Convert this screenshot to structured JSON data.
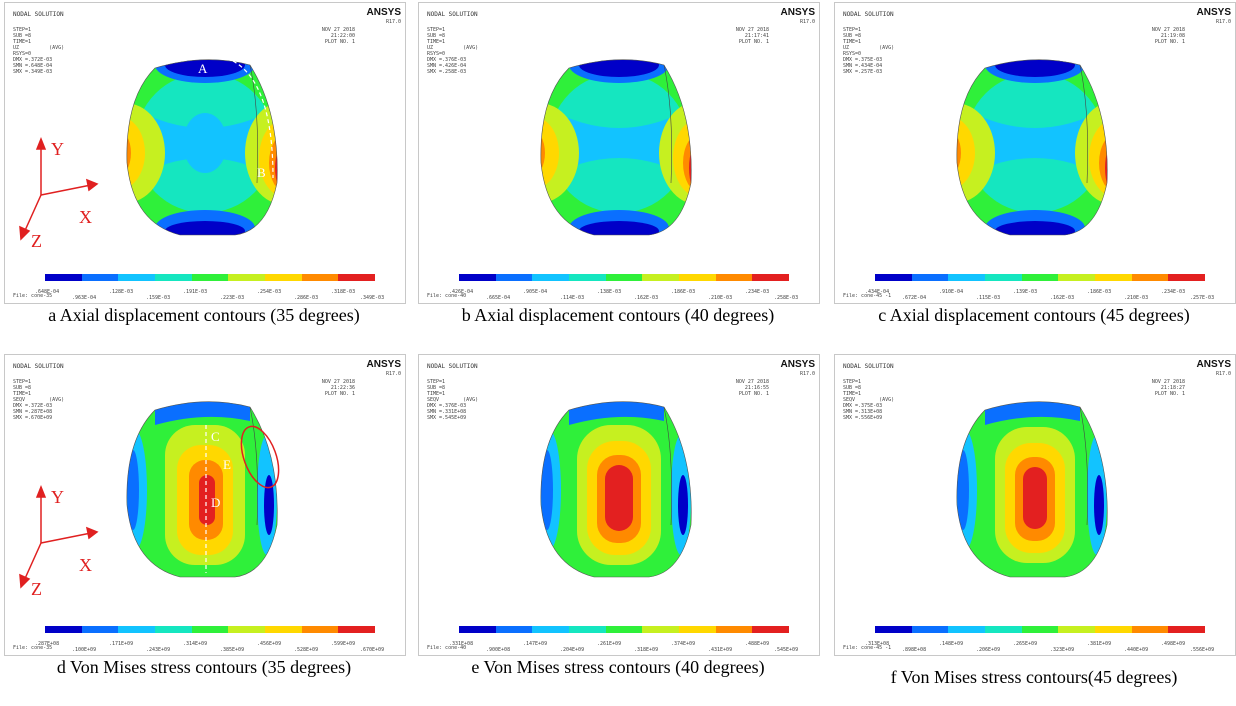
{
  "header": {
    "solution_label": "NODAL SOLUTION",
    "brand": "ANSYS",
    "version": "R17.0",
    "step": "STEP=1",
    "sub": "SUB =8",
    "time": "TIME=1",
    "plot_no": "PLOT NO.   1",
    "date": "NOV 27 2018"
  },
  "colors": [
    "#0000c8",
    "#0a6fff",
    "#12c3ff",
    "#15e6c0",
    "#2ff03a",
    "#c6f020",
    "#ffd800",
    "#ff8a00",
    "#e32020"
  ],
  "panels": [
    {
      "id": "a",
      "var": "UZ          (AVG)",
      "rsys": "RSYS=0",
      "dmx": "DMX =.372E-03",
      "smn": "SMN =.648E-04",
      "smx": "SMX =.349E-03",
      "clock": "21:22:00",
      "file": "File: cone-35",
      "ticks_top": [
        ".648E-04",
        ".128E-03",
        ".191E-03",
        ".254E-03",
        ".318E-03"
      ],
      "ticks_bot": [
        ".963E-04",
        ".159E-03",
        ".223E-03",
        ".286E-03",
        ".349E-03"
      ],
      "caption": "a Axial displacement contours (35 degrees)",
      "labels": {
        "A": "A",
        "B": "B",
        "Y": "Y",
        "X": "X",
        "Z": "Z"
      }
    },
    {
      "id": "b",
      "var": "UZ          (AVG)",
      "rsys": "RSYS=0",
      "dmx": "DMX =.376E-03",
      "smn": "SMN =.426E-04",
      "smx": "SMX =.258E-03",
      "clock": "21:17:41",
      "file": "File: cone-40",
      "ticks_top": [
        ".426E-04",
        ".905E-04",
        ".138E-03",
        ".186E-03",
        ".234E-03"
      ],
      "ticks_bot": [
        ".665E-04",
        ".114E-03",
        ".162E-03",
        ".210E-03",
        ".258E-03"
      ],
      "caption": "b Axial displacement contours (40 degrees)"
    },
    {
      "id": "c",
      "var": "UZ          (AVG)",
      "rsys": "RSYS=0",
      "dmx": "DMX =.375E-03",
      "smn": "SMN =.434E-04",
      "smx": "SMX =.257E-03",
      "clock": "21:19:08",
      "file": "File: cone-45   -1",
      "ticks_top": [
        ".434E-04",
        ".910E-04",
        ".139E-03",
        ".186E-03",
        ".234E-03"
      ],
      "ticks_bot": [
        ".672E-04",
        ".115E-03",
        ".162E-03",
        ".210E-03",
        ".257E-03"
      ],
      "caption": "c Axial displacement contours (45 degrees)"
    },
    {
      "id": "d",
      "var": "SEQV        (AVG)",
      "rsys": "",
      "dmx": "DMX =.372E-03",
      "smn": "SMN =.287E+08",
      "smx": "SMX =.670E+09",
      "clock": "21:22:36",
      "file": "File: cone-35",
      "ticks_top": [
        ".287E+08",
        ".171E+09",
        ".314E+09",
        ".456E+09",
        ".599E+09"
      ],
      "ticks_bot": [
        ".100E+09",
        ".243E+09",
        ".385E+09",
        ".528E+09",
        ".670E+09"
      ],
      "caption": "d Von Mises stress contours (35 degrees)",
      "labels": {
        "C": "C",
        "D": "D",
        "E": "E",
        "Y": "Y",
        "X": "X",
        "Z": "Z"
      }
    },
    {
      "id": "e",
      "var": "SEQV        (AVG)",
      "rsys": "",
      "dmx": "DMX =.376E-03",
      "smn": "SMN =.331E+08",
      "smx": "SMX =.545E+09",
      "clock": "21:16:55",
      "file": "File: cone-40",
      "ticks_top": [
        ".331E+08",
        ".147E+09",
        ".261E+09",
        ".374E+09",
        ".488E+09"
      ],
      "ticks_bot": [
        ".900E+08",
        ".204E+09",
        ".318E+09",
        ".431E+09",
        ".545E+09"
      ],
      "caption": "e Von Mises stress contours (40 degrees)"
    },
    {
      "id": "f",
      "var": "SEQV        (AVG)",
      "rsys": "",
      "dmx": "DMX =.375E-03",
      "smn": "SMN =.313E+08",
      "smx": "SMX =.556E+09",
      "clock": "21:18:27",
      "file": "File: cone-45   -1",
      "ticks_top": [
        ".313E+08",
        ".148E+09",
        ".265E+09",
        ".381E+09",
        ".498E+09"
      ],
      "ticks_bot": [
        ".898E+08",
        ".206E+09",
        ".323E+09",
        ".440E+09",
        ".556E+09"
      ],
      "caption": "f Von Mises stress contours(45 degrees)"
    }
  ]
}
